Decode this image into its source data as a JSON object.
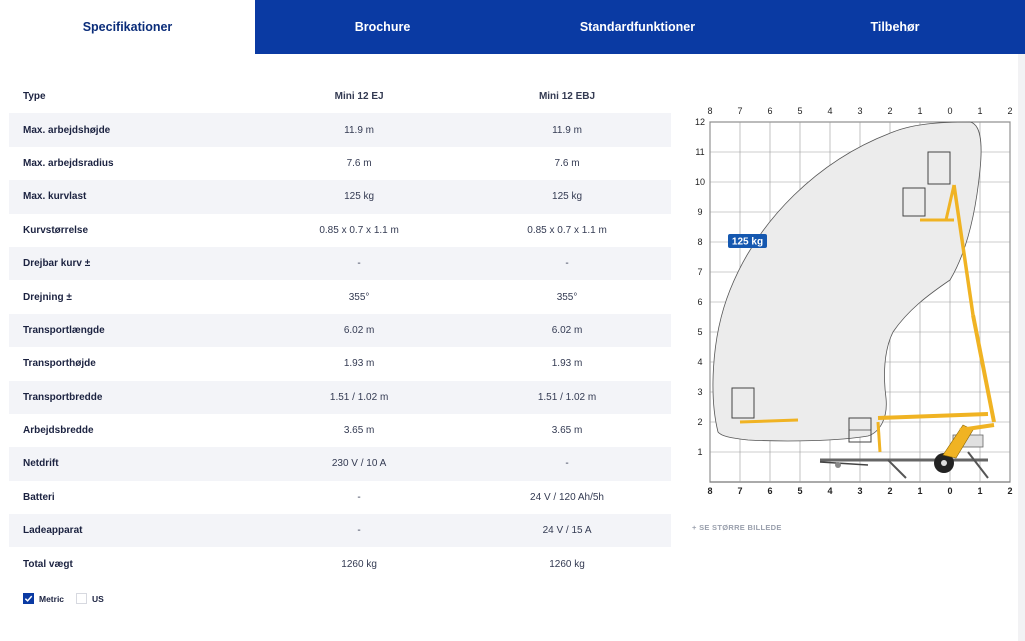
{
  "tabs": [
    {
      "label": "Specifikationer",
      "active": true
    },
    {
      "label": "Brochure",
      "active": false
    },
    {
      "label": "Standardfunktioner",
      "active": false
    },
    {
      "label": "Tilbehør",
      "active": false
    }
  ],
  "specs": {
    "header": {
      "label": "Type",
      "col1": "Mini 12 EJ",
      "col2": "Mini 12 EBJ"
    },
    "rows": [
      {
        "label": "Max. arbejdshøjde",
        "v1": "11.9 m",
        "v2": "11.9 m"
      },
      {
        "label": "Max. arbejdsradius",
        "v1": "7.6 m",
        "v2": "7.6 m"
      },
      {
        "label": "Max. kurvlast",
        "v1": "125 kg",
        "v2": "125 kg"
      },
      {
        "label": "Kurvstørrelse",
        "v1": "0.85 x 0.7 x 1.1 m",
        "v2": "0.85 x 0.7 x 1.1 m"
      },
      {
        "label": "Drejbar kurv ±",
        "v1": "-",
        "v2": "-"
      },
      {
        "label": "Drejning ±",
        "v1": "355°",
        "v2": "355°"
      },
      {
        "label": "Transportlængde",
        "v1": "6.02 m",
        "v2": "6.02 m"
      },
      {
        "label": "Transporthøjde",
        "v1": "1.93 m",
        "v2": "1.93 m"
      },
      {
        "label": "Transportbredde",
        "v1": "1.51 / 1.02 m",
        "v2": "1.51 / 1.02 m"
      },
      {
        "label": "Arbejdsbredde",
        "v1": "3.65 m",
        "v2": "3.65 m"
      },
      {
        "label": "Netdrift",
        "v1": "230 V / 10 A",
        "v2": "-"
      },
      {
        "label": "Batteri",
        "v1": "-",
        "v2": "24 V / 120 Ah/5h"
      },
      {
        "label": "Ladeapparat",
        "v1": "-",
        "v2": "24 V / 15 A"
      },
      {
        "label": "Total vægt",
        "v1": "1260 kg",
        "v2": "1260 kg"
      }
    ]
  },
  "units": {
    "metric_label": "Metric",
    "us_label": "US",
    "selected": "Metric"
  },
  "diagram": {
    "x_ticks": [
      "8",
      "7",
      "6",
      "5",
      "4",
      "3",
      "2",
      "1",
      "0",
      "1",
      "2"
    ],
    "y_ticks": [
      "12",
      "11",
      "10",
      "9",
      "8",
      "7",
      "6",
      "5",
      "4",
      "3",
      "2",
      "1"
    ],
    "load_badge": "125 kg",
    "colors": {
      "envelope": "#ececec",
      "boom": "#f0b323",
      "badge": "#1558b0",
      "grid": "#9a9a9a"
    }
  },
  "see_bigger_label": "+ SE STØRRE BILLEDE"
}
